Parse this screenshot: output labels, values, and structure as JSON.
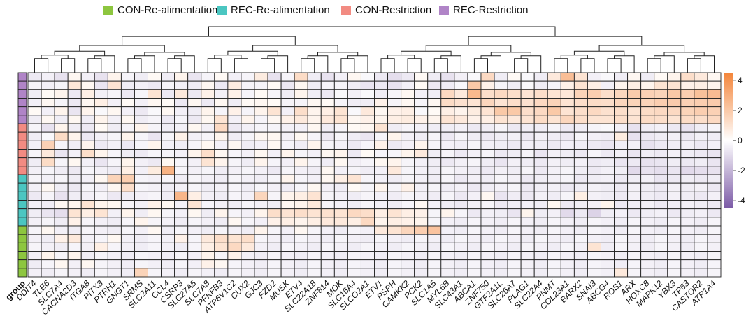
{
  "chart_data": {
    "type": "heatmap",
    "legend": [
      {
        "label": "CON-Re-alimentation",
        "color": "#8dc63f"
      },
      {
        "label": "REC-Re-alimentation",
        "color": "#4bc6c1"
      },
      {
        "label": "CON-Restriction",
        "color": "#f28b82"
      },
      {
        "label": "REC-Restriction",
        "color": "#b084c7"
      }
    ],
    "group_label": "group",
    "genes": [
      "DDIT4",
      "TLE6",
      "SLC7A4",
      "CACNA2D3",
      "ITGA8",
      "PITX3",
      "PTRH1",
      "GNGT1",
      "SRMS",
      "SLC2A11",
      "CCL4",
      "CSRP3",
      "SLC27A5",
      "SLC7A8",
      "PFKFB3",
      "ATP6V1C2",
      "CUX2",
      "GJC3",
      "FZD2",
      "MUSK",
      "ETV4",
      "SLC22A18",
      "ZNF814",
      "MOK",
      "SLC16A4",
      "SLCO2A1",
      "ETV1",
      "PSPH",
      "CAMKK2",
      "PCK2",
      "SLC1A5",
      "MYL6B",
      "SLC43A1",
      "ABCA1",
      "ZNF750",
      "GTF2A1L",
      "SLC26A7",
      "PLAG1",
      "SLC22A4",
      "PNMT",
      "COL23A1",
      "BARX2",
      "SNAI3",
      "ABCG4",
      "ROS1",
      "ARX",
      "HOXC8",
      "MAPK12",
      "YBX3",
      "TP63",
      "CASTOR2",
      "ATP1A4"
    ],
    "row_groups": [
      "REC-Restriction",
      "REC-Restriction",
      "REC-Restriction",
      "REC-Restriction",
      "REC-Restriction",
      "REC-Restriction",
      "CON-Restriction",
      "CON-Restriction",
      "CON-Restriction",
      "CON-Restriction",
      "CON-Restriction",
      "CON-Restriction",
      "REC-Re-alimentation",
      "REC-Re-alimentation",
      "REC-Re-alimentation",
      "REC-Re-alimentation",
      "REC-Re-alimentation",
      "REC-Re-alimentation",
      "CON-Re-alimentation",
      "CON-Re-alimentation",
      "CON-Re-alimentation",
      "CON-Re-alimentation",
      "CON-Re-alimentation",
      "CON-Re-alimentation"
    ],
    "color_scale": {
      "min": -4.5,
      "max": 4.5,
      "low": "#7b5aa6",
      "mid": "#ffffff",
      "high": "#f4853a",
      "ticks": [
        4,
        2,
        0,
        -2,
        -4
      ],
      "tick_labels": [
        "4",
        "2",
        "0",
        "-2",
        "-4"
      ]
    },
    "values": [
      [
        -0.6,
        -0.4,
        -0.8,
        0.3,
        -0.4,
        -0.8,
        0.4,
        -0.3,
        -0.5,
        0.2,
        -0.5,
        0.4,
        -0.7,
        -0.3,
        0.2,
        -0.4,
        -0.3,
        0.7,
        -0.8,
        -0.3,
        1.3,
        -0.5,
        -0.8,
        -0.4,
        0.3,
        -0.2,
        -0.6,
        -0.9,
        -0.6,
        0.2,
        -0.5,
        -0.8,
        -0.4,
        -0.2,
        1.4,
        -0.5,
        0.2,
        -0.2,
        -0.5,
        0.8,
        2.4,
        1.0,
        -0.4,
        -0.2,
        -0.5,
        0.3,
        -0.5,
        0.2,
        0.4,
        1.2,
        0.8,
        0.3
      ],
      [
        -0.3,
        -0.4,
        -0.3,
        0.9,
        0.3,
        -0.7,
        1.0,
        -0.5,
        -0.4,
        -0.6,
        -0.3,
        -0.4,
        -0.5,
        0.3,
        -0.6,
        0.7,
        -0.3,
        -0.3,
        0.2,
        -0.6,
        0.3,
        -0.5,
        -0.3,
        -0.3,
        -0.5,
        -0.7,
        -0.6,
        -0.8,
        -0.4,
        0.2,
        -0.6,
        -0.5,
        -0.2,
        2.0,
        0.5,
        -0.3,
        -0.5,
        -0.2,
        -0.5,
        -0.3,
        0.5,
        1.0,
        0.6,
        -0.4,
        0.4,
        0.6,
        0.4,
        1.0,
        1.0,
        0.5,
        0.6,
        0.4
      ],
      [
        -0.5,
        0.2,
        0.4,
        -0.6,
        0.6,
        -0.4,
        -0.3,
        -0.6,
        -0.3,
        1.0,
        -0.6,
        0.8,
        -0.6,
        0.5,
        -0.4,
        0.5,
        -0.3,
        0.2,
        -0.3,
        -0.5,
        0.4,
        -0.5,
        -0.6,
        -0.2,
        -0.4,
        -0.2,
        -0.5,
        -0.3,
        0.3,
        -0.4,
        -0.5,
        1.4,
        0.8,
        2.6,
        1.2,
        1.4,
        1.2,
        1.0,
        1.2,
        1.0,
        0.9,
        1.6,
        1.8,
        1.2,
        1.5,
        1.9,
        1.7,
        1.6,
        2.0,
        1.8,
        2.3,
        2.5
      ],
      [
        -0.4,
        0.3,
        -0.3,
        -0.6,
        0.3,
        0.6,
        -0.4,
        0.2,
        -0.4,
        0.3,
        0.2,
        -0.6,
        0.3,
        -0.6,
        0.3,
        -0.5,
        0.2,
        0.3,
        0.2,
        -0.3,
        -0.3,
        0.3,
        0.2,
        -0.3,
        -0.5,
        -0.5,
        0.5,
        -0.3,
        0.3,
        -0.3,
        0.3,
        1.3,
        1.1,
        1.0,
        1.5,
        1.0,
        1.2,
        1.1,
        1.4,
        1.6,
        1.0,
        1.2,
        1.3,
        1.2,
        1.5,
        1.6,
        1.6,
        1.8,
        1.9,
        1.7,
        1.8,
        1.9
      ],
      [
        0.2,
        -0.4,
        0.4,
        -0.7,
        0.4,
        -0.2,
        0.3,
        -0.4,
        -0.6,
        -0.2,
        0.3,
        -0.4,
        -0.5,
        0.4,
        -0.3,
        0.5,
        -0.3,
        0.4,
        1.0,
        -0.4,
        1.2,
        0.4,
        0.6,
        1.0,
        -0.2,
        0.8,
        0.3,
        0.5,
        0.6,
        -0.2,
        0.2,
        0.6,
        0.4,
        0.7,
        1.0,
        2.0,
        2.0,
        1.2,
        1.4,
        2.0,
        1.0,
        1.2,
        1.4,
        1.1,
        1.2,
        1.0,
        1.3,
        1.4,
        1.4,
        1.6,
        1.8,
        1.7
      ],
      [
        -0.5,
        0.3,
        -0.5,
        0.3,
        -0.5,
        0.4,
        -0.4,
        0.3,
        -0.5,
        -0.3,
        -0.6,
        -0.3,
        -0.6,
        0.3,
        1.0,
        -0.4,
        0.4,
        -0.3,
        0.3,
        0.5,
        0.8,
        0.4,
        0.8,
        1.0,
        0.3,
        0.5,
        0.4,
        0.6,
        0.7,
        0.5,
        0.4,
        1.0,
        0.8,
        0.5,
        0.6,
        1.0,
        0.8,
        1.0,
        1.3,
        1.0,
        1.5,
        1.2,
        1.0,
        1.0,
        1.2,
        1.0,
        1.3,
        1.2,
        1.0,
        1.3,
        1.2,
        1.4
      ],
      [
        -0.3,
        -0.8,
        0.4,
        -0.5,
        -0.6,
        0.2,
        -0.5,
        -0.3,
        0.4,
        -0.3,
        -0.5,
        -0.4,
        0.3,
        -0.4,
        1.4,
        -0.6,
        -0.4,
        -0.3,
        -0.3,
        -0.4,
        -0.4,
        0.3,
        -0.5,
        -0.3,
        0.2,
        0.3,
        1.0,
        -0.5,
        -0.3,
        -0.4,
        -0.5,
        -0.5,
        -0.4,
        -0.6,
        -0.5,
        -0.3,
        -0.6,
        -0.5,
        -0.5,
        -0.3,
        -0.6,
        -0.5,
        -0.3,
        -0.2,
        -0.4,
        -0.8,
        -0.5,
        -0.4,
        -0.6,
        -0.8,
        -0.5,
        -0.3
      ],
      [
        -0.5,
        -0.2,
        1.3,
        0.4,
        -0.6,
        -0.4,
        -0.3,
        0.4,
        -0.3,
        -0.7,
        -0.3,
        0.5,
        -0.4,
        -0.3,
        0.4,
        -0.5,
        -0.3,
        0.3,
        0.3,
        -0.4,
        0.3,
        -0.3,
        -0.6,
        -0.3,
        -0.5,
        -0.7,
        -0.3,
        0.4,
        -0.4,
        -0.5,
        -0.3,
        -0.6,
        -0.3,
        -0.5,
        -0.6,
        -0.5,
        -0.4,
        -0.6,
        -0.4,
        -0.5,
        -0.6,
        -0.3,
        -0.4,
        -0.5,
        0.7,
        -0.8,
        -0.6,
        -0.5,
        -0.4,
        -0.6,
        -0.4,
        -0.5
      ],
      [
        -0.4,
        1.7,
        -0.3,
        -0.5,
        0.4,
        -0.6,
        -0.4,
        -0.6,
        -0.3,
        0.4,
        -0.4,
        -0.5,
        -0.3,
        0.3,
        -0.4,
        0.3,
        -0.5,
        -0.4,
        0.3,
        -0.3,
        -0.5,
        0.4,
        -0.3,
        -0.4,
        -0.6,
        -0.3,
        0.5,
        -0.6,
        -0.4,
        0.4,
        -0.3,
        -0.4,
        -0.5,
        -0.3,
        -0.4,
        -0.5,
        -0.6,
        -0.4,
        -0.5,
        -0.6,
        -0.4,
        -0.5,
        -0.6,
        -0.7,
        -0.5,
        -0.4,
        -0.8,
        -0.6,
        -0.5,
        -0.4,
        -0.6,
        -0.4
      ],
      [
        -0.3,
        0.8,
        -0.7,
        -0.4,
        1.2,
        0.4,
        -0.3,
        -0.5,
        -0.6,
        -0.3,
        -0.3,
        -0.4,
        0.4,
        1.2,
        0.3,
        -0.3,
        -0.4,
        0.3,
        -0.4,
        0.4,
        -0.3,
        -0.4,
        0.3,
        0.4,
        -0.6,
        0.2,
        -0.3,
        -0.3,
        0.4,
        0.8,
        -0.5,
        -0.3,
        -0.6,
        -0.4,
        -0.3,
        -0.6,
        -0.5,
        -0.3,
        -0.7,
        -0.4,
        -0.5,
        -0.6,
        -0.3,
        -0.6,
        -0.4,
        -0.7,
        -0.5,
        -0.6,
        -0.4,
        -0.5,
        -0.6,
        -0.7
      ],
      [
        -0.5,
        1.3,
        -0.3,
        0.3,
        -0.4,
        -0.7,
        -0.3,
        0.4,
        -0.4,
        -0.6,
        0.3,
        -0.3,
        -0.4,
        1.0,
        0.4,
        -0.3,
        -0.5,
        0.4,
        -0.3,
        -0.4,
        0.4,
        -0.3,
        -0.5,
        0.3,
        -0.4,
        -0.3,
        0.3,
        0.4,
        -0.3,
        -0.4,
        -0.5,
        -0.6,
        -0.4,
        -0.3,
        -0.5,
        -0.7,
        -0.4,
        -0.5,
        -0.6,
        -0.4,
        -0.5,
        -0.4,
        -0.6,
        -0.5,
        -0.7,
        -0.6,
        -0.8,
        -0.7,
        -0.5,
        -0.6,
        -0.5,
        -0.7
      ],
      [
        -0.4,
        -0.3,
        -0.5,
        -0.6,
        -0.3,
        -0.4,
        -0.5,
        0.6,
        -0.4,
        0.7,
        2.8,
        -0.3,
        -0.4,
        -0.3,
        -0.5,
        -0.4,
        -0.3,
        -0.4,
        -0.6,
        -0.3,
        -0.4,
        -0.5,
        0.3,
        -0.4,
        -0.3,
        -0.5,
        -0.4,
        0.8,
        -0.3,
        -0.4,
        -0.5,
        -0.3,
        -0.4,
        -0.5,
        -0.6,
        -0.4,
        -0.5,
        -0.3,
        -0.6,
        -0.4,
        -0.3,
        -0.5,
        -0.6,
        -0.4,
        -0.5,
        -1.0,
        -0.8,
        -0.9,
        -0.7,
        -1.0,
        -0.9,
        -0.8
      ],
      [
        -0.3,
        -0.4,
        -0.3,
        -0.5,
        -0.4,
        0.3,
        1.6,
        1.8,
        -0.3,
        -0.4,
        -0.3,
        -0.5,
        -0.3,
        -0.4,
        -0.5,
        -0.3,
        -0.4,
        -0.5,
        -0.3,
        0.4,
        -0.3,
        -0.4,
        0.3,
        0.6,
        1.0,
        -0.3,
        -0.4,
        -0.5,
        -0.3,
        -0.4,
        -0.5,
        -0.3,
        -0.6,
        -0.4,
        -0.5,
        -0.3,
        -0.4,
        -0.6,
        -0.5,
        -0.4,
        -0.3,
        -0.6,
        -0.5,
        -0.4,
        -0.6,
        -0.5,
        -0.4,
        -0.7,
        -0.6,
        -0.5,
        -0.6,
        -0.5
      ],
      [
        -0.4,
        0.3,
        -0.5,
        -0.6,
        -0.3,
        -0.4,
        0.3,
        1.2,
        -0.3,
        -0.4,
        -0.5,
        -0.4,
        -0.3,
        -0.5,
        -0.4,
        -0.3,
        -0.5,
        -0.3,
        -0.4,
        -0.5,
        -0.3,
        0.3,
        -0.4,
        -0.5,
        0.2,
        -0.3,
        0.4,
        -0.3,
        0.5,
        -0.4,
        -0.3,
        -0.5,
        -0.4,
        -0.6,
        -0.5,
        -0.4,
        -0.3,
        -0.6,
        -0.5,
        -0.4,
        -0.6,
        -0.5,
        -0.4,
        -0.5,
        -0.6,
        -0.4,
        -0.5,
        -0.6,
        -0.4,
        -0.5,
        -0.4,
        -0.6
      ],
      [
        -0.6,
        -0.3,
        -0.8,
        -0.5,
        -0.4,
        -0.3,
        -0.6,
        -0.5,
        -0.4,
        -0.3,
        -0.5,
        2.7,
        0.6,
        -0.4,
        -0.5,
        -0.3,
        -0.4,
        1.5,
        -0.3,
        0.4,
        0.6,
        1.0,
        -0.3,
        -0.4,
        -0.5,
        -0.3,
        -0.4,
        -0.5,
        -0.3,
        -0.4,
        -0.5,
        -0.3,
        -0.6,
        -0.4,
        0.3,
        -0.7,
        -0.5,
        -0.6,
        -0.4,
        -0.5,
        -0.3,
        0.6,
        -0.4,
        -0.5,
        -0.6,
        -0.4,
        -0.5,
        -0.6,
        -0.4,
        -0.5,
        -0.6,
        -0.4
      ],
      [
        -0.4,
        -0.5,
        0.3,
        0.4,
        1.0,
        0.4,
        0.3,
        -0.3,
        -0.4,
        0.5,
        0.3,
        -0.4,
        1.0,
        -0.3,
        -0.4,
        -0.5,
        -0.3,
        -0.4,
        -0.5,
        0.3,
        0.4,
        0.8,
        -0.3,
        -0.4,
        -0.5,
        -0.3,
        -0.4,
        -0.5,
        -0.3,
        0.3,
        -0.4,
        -0.5,
        -0.6,
        -0.4,
        -0.3,
        -0.6,
        -0.5,
        -0.4,
        -0.5,
        0.3,
        -0.6,
        -0.5,
        -0.4,
        0.4,
        -0.6,
        -0.5,
        -0.4,
        -0.6,
        -0.5,
        -0.4,
        -0.5,
        -0.6
      ],
      [
        -0.5,
        -0.7,
        -0.9,
        1.0,
        0.6,
        1.0,
        -0.4,
        0.4,
        -0.5,
        0.3,
        -0.3,
        -0.4,
        0.3,
        -0.5,
        0.4,
        -0.3,
        -0.4,
        0.4,
        1.2,
        1.0,
        1.2,
        1.0,
        1.1,
        1.0,
        1.4,
        1.2,
        0.6,
        1.0,
        0.6,
        0.5,
        -0.3,
        0.4,
        -0.3,
        -0.6,
        -0.4,
        -0.5,
        -0.7,
        0.4,
        -0.5,
        -0.4,
        -1.0,
        -0.6,
        -1.2,
        -0.5,
        -0.4,
        -0.6,
        -0.5,
        -0.4,
        -0.6,
        -0.5,
        -0.4,
        -0.6
      ],
      [
        -0.4,
        -0.3,
        -0.5,
        0.5,
        -0.3,
        -0.4,
        -0.5,
        -0.3,
        0.4,
        -0.3,
        -0.4,
        -0.5,
        -0.3,
        -0.4,
        -0.5,
        0.3,
        -0.3,
        -0.4,
        0.5,
        0.6,
        0.4,
        0.6,
        0.8,
        0.8,
        0.6,
        1.4,
        0.4,
        0.6,
        0.5,
        0.4,
        -0.3,
        -0.4,
        -0.5,
        -0.3,
        -0.4,
        -0.5,
        -0.3,
        -0.4,
        -0.5,
        -0.3,
        -0.4,
        -0.5,
        -0.3,
        -0.4,
        -0.5,
        -0.3,
        -0.4,
        -0.5,
        -0.3,
        -0.4,
        -0.5,
        -0.3
      ],
      [
        -0.3,
        0.3,
        -0.4,
        -0.5,
        -0.3,
        -0.4,
        -0.5,
        -0.3,
        -0.4,
        0.3,
        -0.5,
        -0.3,
        -0.4,
        -0.5,
        -0.3,
        -0.4,
        -0.5,
        0.4,
        -0.3,
        -0.4,
        0.3,
        -0.3,
        -0.4,
        -0.5,
        -0.3,
        -0.4,
        0.8,
        1.0,
        1.5,
        1.8,
        2.2,
        -0.4,
        -0.5,
        -0.3,
        -0.4,
        -0.5,
        -0.3,
        -0.4,
        -0.5,
        -0.3,
        -0.4,
        -0.5,
        -0.3,
        -0.4,
        -0.5,
        -0.3,
        -0.4,
        -0.5,
        -0.3,
        -0.4,
        -0.5,
        -0.3
      ],
      [
        -0.4,
        -0.5,
        0.5,
        0.8,
        -0.4,
        -0.3,
        0.3,
        -0.4,
        -0.5,
        -0.3,
        -0.4,
        0.5,
        -0.3,
        0.8,
        1.2,
        1.0,
        1.2,
        -0.3,
        -0.4,
        -0.5,
        -0.3,
        -0.4,
        -0.5,
        -0.3,
        -0.4,
        -0.5,
        -0.3,
        -0.4,
        -0.5,
        -0.3,
        -0.4,
        -0.5,
        -0.3,
        -0.4,
        -0.5,
        -0.3,
        -0.4,
        -0.5,
        -0.3,
        -0.4,
        -0.5,
        -0.3,
        -0.4,
        -0.5,
        -0.3,
        -0.4,
        -0.5,
        -0.3,
        -0.4,
        -0.5,
        -0.3,
        -0.4
      ],
      [
        -0.3,
        -0.4,
        -0.5,
        -0.3,
        -0.4,
        0.6,
        -0.3,
        -0.4,
        -0.5,
        -0.3,
        -0.4,
        -0.5,
        -0.3,
        0.6,
        1.0,
        1.4,
        0.8,
        -0.4,
        -0.5,
        -0.3,
        -0.4,
        -0.5,
        -0.3,
        -0.4,
        -0.5,
        -0.3,
        -0.4,
        -0.5,
        -0.3,
        -0.4,
        -0.5,
        -0.3,
        -0.4,
        -0.5,
        -0.3,
        -0.4,
        -0.5,
        -0.3,
        -0.4,
        -0.5,
        -0.3,
        -0.4,
        1.0,
        -0.5,
        -0.3,
        -0.4,
        -0.5,
        -0.3,
        -0.4,
        -0.5,
        -0.3,
        -0.4
      ],
      [
        -0.4,
        0.4,
        -0.3,
        0.4,
        -0.5,
        -0.3,
        -0.4,
        -0.5,
        -0.3,
        -0.4,
        -0.5,
        -0.3,
        -0.4,
        0.4,
        -0.3,
        0.5,
        -0.4,
        -0.5,
        -0.3,
        -0.4,
        -0.5,
        -0.3,
        -0.4,
        -0.5,
        -0.3,
        -0.4,
        -0.5,
        -0.3,
        -0.4,
        -0.5,
        -0.3,
        -0.4,
        -0.5,
        -0.3,
        -0.4,
        -0.5,
        -0.3,
        -0.4,
        -0.5,
        -0.3,
        -0.4,
        -0.5,
        -0.3,
        -0.4,
        -0.5,
        -0.3,
        -0.4,
        -0.5,
        -0.3,
        -0.4,
        -0.5,
        -0.3
      ],
      [
        -0.5,
        -0.3,
        0.3,
        -0.4,
        0.3,
        -0.3,
        -0.4,
        -0.5,
        -0.3,
        -0.4,
        -0.5,
        -0.3,
        -0.4,
        0.5,
        0.3,
        -0.3,
        -0.4,
        -0.5,
        -0.3,
        -0.4,
        -0.5,
        -0.3,
        -0.4,
        -0.5,
        -0.3,
        -0.4,
        -0.5,
        -0.3,
        -0.4,
        -0.5,
        -0.3,
        -0.4,
        -0.5,
        -0.3,
        -0.4,
        -0.5,
        -0.3,
        -0.4,
        -0.5,
        -0.3,
        -0.4,
        -0.5,
        -0.3,
        -0.4,
        -0.5,
        -0.3,
        -0.4,
        -0.5,
        -0.3,
        -0.4,
        -0.5,
        -0.3
      ],
      [
        -0.4,
        -0.5,
        -0.3,
        -0.4,
        -0.5,
        -0.3,
        -0.4,
        -0.5,
        1.6,
        -0.3,
        -0.4,
        -0.5,
        -0.3,
        -0.4,
        -0.5,
        -0.3,
        -0.4,
        -0.5,
        -0.3,
        -0.4,
        -0.5,
        -0.3,
        -0.4,
        -0.5,
        -0.3,
        -0.4,
        -0.5,
        -0.3,
        -0.4,
        -0.5,
        -0.3,
        -0.4,
        -0.5,
        -0.3,
        -0.4,
        -0.5,
        -0.3,
        -0.4,
        -0.5,
        -0.3,
        -0.4,
        -0.5,
        -0.3,
        -0.4,
        0.8,
        -0.3,
        -0.4,
        -0.5,
        -0.3,
        -0.4,
        -0.5,
        -0.3
      ]
    ]
  }
}
